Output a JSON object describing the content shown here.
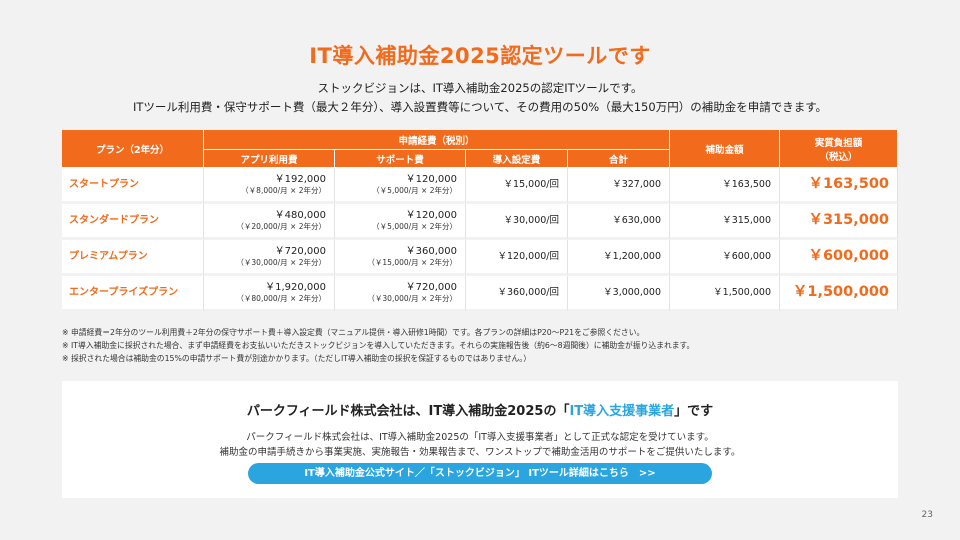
{
  "title": "IT導入補助金2025認定ツールです",
  "subtitle_line1": "ストックビジョンは、IT導入補助金2025の認定ITツールです。",
  "subtitle_line2": "ITツール利用費・保守サポート費（最大２年分）、導入設置費等について、その費用の50%（最大150万円）の補助金を申請できます。",
  "table": {
    "headers": {
      "plan": "プラン（2年分）",
      "application_cost": "申請経費（税別）",
      "app_fee": "アプリ利用費",
      "support_fee": "サポート費",
      "setup_fee": "導入設定費",
      "total": "合計",
      "subsidy": "補助金額",
      "burden": "実質負担額",
      "burden_tax": "（税込）"
    },
    "rows": [
      {
        "plan": "スタートプラン",
        "app_fee": "￥192,000",
        "app_fee_detail": "（￥8,000/月 × 2年分）",
        "support_fee": "￥120,000",
        "support_fee_detail": "（￥5,000/月 × 2年分）",
        "setup_fee": "￥15,000/回",
        "total": "￥327,000",
        "subsidy": "￥163,500",
        "burden": "￥163,500"
      },
      {
        "plan": "スタンダードプラン",
        "app_fee": "￥480,000",
        "app_fee_detail": "（￥20,000/月 × 2年分）",
        "support_fee": "￥120,000",
        "support_fee_detail": "（￥5,000/月 × 2年分）",
        "setup_fee": "￥30,000/回",
        "total": "￥630,000",
        "subsidy": "￥315,000",
        "burden": "￥315,000"
      },
      {
        "plan": "プレミアムプラン",
        "app_fee": "￥720,000",
        "app_fee_detail": "（￥30,000/月 × 2年分）",
        "support_fee": "￥360,000",
        "support_fee_detail": "（￥15,000/月 × 2年分）",
        "setup_fee": "￥120,000/回",
        "total": "￥1,200,000",
        "subsidy": "￥600,000",
        "burden": "￥600,000"
      },
      {
        "plan": "エンタープライズプラン",
        "app_fee": "￥1,920,000",
        "app_fee_detail": "（￥80,000/月 × 2年分）",
        "support_fee": "￥720,000",
        "support_fee_detail": "（￥30,000/月 × 2年分）",
        "setup_fee": "￥360,000/回",
        "total": "￥3,000,000",
        "subsidy": "￥1,500,000",
        "burden": "￥1,500,000"
      }
    ]
  },
  "notes": [
    "※ 申請経費＝2年分のツール利用費＋2年分の保守サポート費＋導入設定費（マニュアル提供・導入研修1時間）です。各プランの詳細はP20〜P21をご参照ください。",
    "※ IT導入補助金に採択された場合、まず申請経費をお支払いいただきストックビジョンを導入していただきます。それらの実施報告後（約6〜8週間後）に補助金が振り込まれます。",
    "※ 採択された場合は補助金の15%の申請サポート費が別途かかります。（ただしIT導入補助金の採択を保証するものではありません。）"
  ],
  "partner": {
    "title_prefix": "パークフィールド株式会社は、IT導入補助金2025の「",
    "title_highlight": "IT導入支援事業者",
    "title_suffix": "」です",
    "text_line1": "パークフィールド株式会社は、IT導入補助金2025の「IT導入支援事業者」として正式な認定を受けています。",
    "text_line2": "補助金の申請手続きから事業実施、実施報告・効果報告まで、ワンストップで補助金活用のサポートをご提供いたします。",
    "link_label": "IT導入補助金公式サイト／「ストックビジョン」 ITツール詳細はこちら　>>"
  },
  "page_number": "23",
  "colors": {
    "accent": "#f26a1b",
    "link": "#2aa5e0"
  }
}
